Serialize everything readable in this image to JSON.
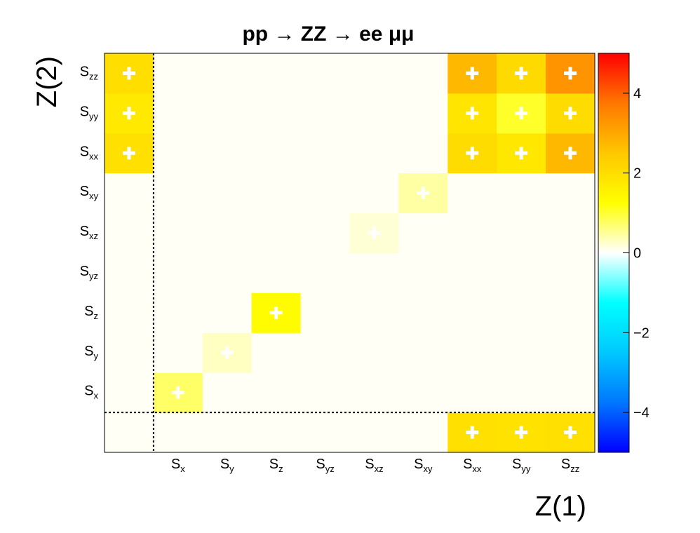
{
  "chart_data": {
    "type": "heatmap",
    "title": "pp → ZZ → ee μμ",
    "xlabel": "Z(1)",
    "ylabel": "Z(2)",
    "x_categories": [
      {
        "label": "",
        "base": "",
        "sub": ""
      },
      {
        "label": "Sx",
        "base": "S",
        "sub": "x"
      },
      {
        "label": "Sy",
        "base": "S",
        "sub": "y"
      },
      {
        "label": "Sz",
        "base": "S",
        "sub": "z"
      },
      {
        "label": "Syz",
        "base": "S",
        "sub": "yz"
      },
      {
        "label": "Sxz",
        "base": "S",
        "sub": "xz"
      },
      {
        "label": "Sxy",
        "base": "S",
        "sub": "xy"
      },
      {
        "label": "Sxx",
        "base": "S",
        "sub": "xx"
      },
      {
        "label": "Syy",
        "base": "S",
        "sub": "yy"
      },
      {
        "label": "Szz",
        "base": "S",
        "sub": "zz"
      }
    ],
    "y_categories": [
      {
        "label": "",
        "base": "",
        "sub": ""
      },
      {
        "label": "Sx",
        "base": "S",
        "sub": "x"
      },
      {
        "label": "Sy",
        "base": "S",
        "sub": "y"
      },
      {
        "label": "Sz",
        "base": "S",
        "sub": "z"
      },
      {
        "label": "Syz",
        "base": "S",
        "sub": "yz"
      },
      {
        "label": "Sxz",
        "base": "S",
        "sub": "xz"
      },
      {
        "label": "Sxy",
        "base": "S",
        "sub": "xy"
      },
      {
        "label": "Sxx",
        "base": "S",
        "sub": "xx"
      },
      {
        "label": "Syy",
        "base": "S",
        "sub": "yy"
      },
      {
        "label": "Szz",
        "base": "S",
        "sub": "zz"
      }
    ],
    "cells": [
      {
        "x": 0,
        "y": 0,
        "value": 0.05
      },
      {
        "x": 7,
        "y": 0,
        "value": 1.95
      },
      {
        "x": 8,
        "y": 0,
        "value": 1.9
      },
      {
        "x": 9,
        "y": 0,
        "value": 1.95
      },
      {
        "x": 1,
        "y": 1,
        "value": 0.75
      },
      {
        "x": 2,
        "y": 2,
        "value": 0.3
      },
      {
        "x": 3,
        "y": 3,
        "value": 1.35
      },
      {
        "x": 5,
        "y": 5,
        "value": 0.2
      },
      {
        "x": 6,
        "y": 6,
        "value": 0.45
      },
      {
        "x": 0,
        "y": 7,
        "value": 1.95
      },
      {
        "x": 7,
        "y": 7,
        "value": 2.05
      },
      {
        "x": 8,
        "y": 7,
        "value": 1.8
      },
      {
        "x": 9,
        "y": 7,
        "value": 2.75
      },
      {
        "x": 0,
        "y": 8,
        "value": 1.75
      },
      {
        "x": 7,
        "y": 8,
        "value": 1.85
      },
      {
        "x": 8,
        "y": 8,
        "value": 1.05
      },
      {
        "x": 9,
        "y": 8,
        "value": 2.05
      },
      {
        "x": 0,
        "y": 9,
        "value": 2.0
      },
      {
        "x": 7,
        "y": 9,
        "value": 2.75
      },
      {
        "x": 8,
        "y": 9,
        "value": 2.1
      },
      {
        "x": 9,
        "y": 9,
        "value": 3.3
      }
    ],
    "plus_markers": [
      [
        7,
        0
      ],
      [
        8,
        0
      ],
      [
        9,
        0
      ],
      [
        1,
        1
      ],
      [
        2,
        2
      ],
      [
        3,
        3
      ],
      [
        5,
        5
      ],
      [
        6,
        6
      ],
      [
        0,
        7
      ],
      [
        7,
        7
      ],
      [
        8,
        7
      ],
      [
        9,
        7
      ],
      [
        0,
        8
      ],
      [
        7,
        8
      ],
      [
        8,
        8
      ],
      [
        9,
        8
      ],
      [
        0,
        9
      ],
      [
        7,
        9
      ],
      [
        8,
        9
      ],
      [
        9,
        9
      ]
    ],
    "default_value": 0.05,
    "zlim": [
      -5,
      5
    ],
    "colorbar_ticks": [
      {
        "value": 4,
        "label": "4"
      },
      {
        "value": 2,
        "label": "2"
      },
      {
        "value": 0,
        "label": "0"
      },
      {
        "value": -2,
        "label": "−2"
      },
      {
        "value": -4,
        "label": "−4"
      }
    ],
    "colormap": [
      "#0000ff",
      "#0077ff",
      "#00c8ff",
      "#00ffff",
      "#ffffff",
      "#ffff00",
      "#ffc800",
      "#ff7700",
      "#ff0000"
    ],
    "divider_lines": "dotted lines between first and second rows/columns",
    "grid": false
  }
}
